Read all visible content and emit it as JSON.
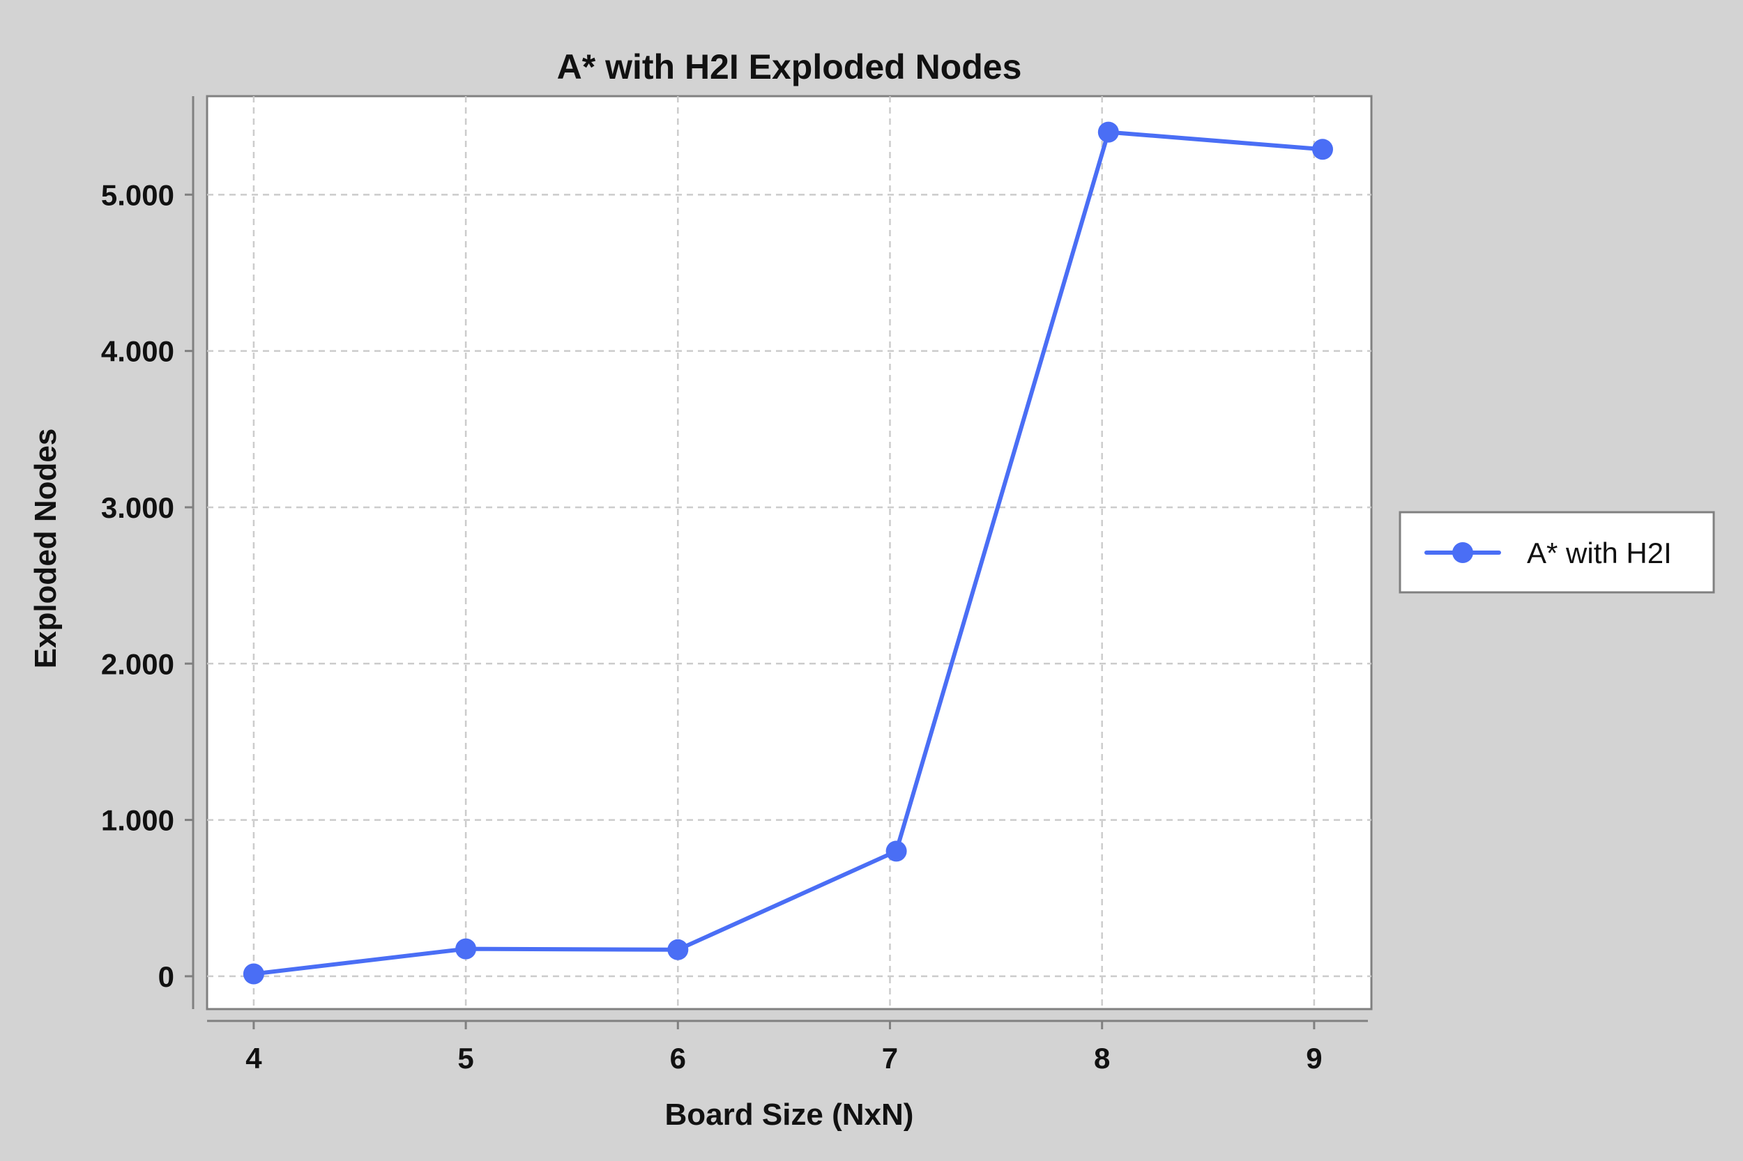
{
  "chart_data": {
    "type": "line",
    "title": "A* with H2I Exploded Nodes",
    "xlabel": "Board Size (NxN)",
    "ylabel": "Exploded Nodes",
    "x": [
      4,
      5,
      6,
      7,
      8,
      9
    ],
    "x_tick_labels": [
      "4",
      "5",
      "6",
      "7",
      "8",
      "9"
    ],
    "y_ticks": [
      0,
      1000,
      2000,
      3000,
      4000,
      5000
    ],
    "y_tick_labels": [
      "0",
      "1.000",
      "2.000",
      "3.000",
      "4.000",
      "5.000"
    ],
    "xlim": [
      3.78,
      9.27
    ],
    "ylim": [
      -210,
      5630
    ],
    "series": [
      {
        "name": "A* with H2I",
        "x": [
          4.0,
          5.0,
          6.0,
          7.03,
          8.03,
          9.04
        ],
        "values": [
          15,
          175,
          170,
          800,
          5400,
          5290
        ],
        "color": "#4a6ef5"
      }
    ],
    "grid": true,
    "legend_position": "right"
  }
}
